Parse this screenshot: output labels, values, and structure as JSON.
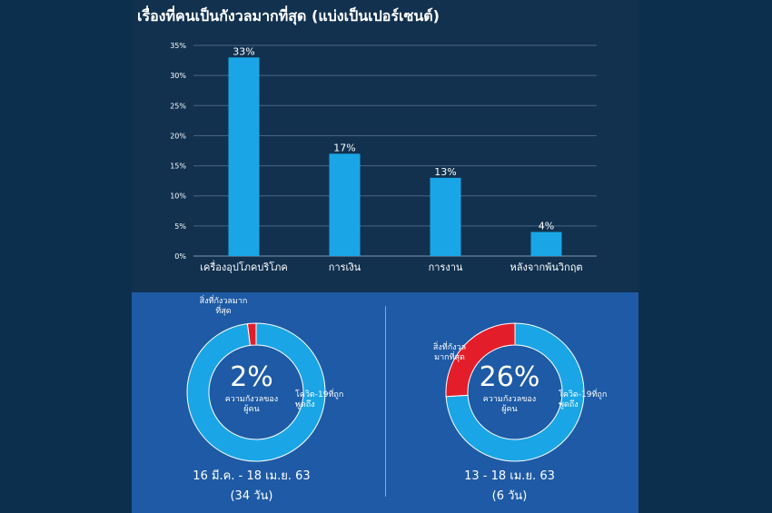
{
  "chart_data": [
    {
      "type": "bar",
      "title": "เรื่องที่คนเป็นกังวลมากที่สุด (แบ่งเป็นเปอร์เซนต์)",
      "categories": [
        "เครื่องอุปโภคบริโภค",
        "การเงิน",
        "การงาน",
        "หลังจากพ้นวิกฤต"
      ],
      "values": [
        33,
        17,
        13,
        4
      ],
      "data_labels": [
        "33%",
        "17%",
        "13%",
        "4%"
      ],
      "ylim": [
        0,
        35
      ],
      "yticks": [
        "0%",
        "5%",
        "10%",
        "15%",
        "20%",
        "25%",
        "30%",
        "35%"
      ],
      "grid": true,
      "bar_color": "#1aa6e6"
    },
    {
      "type": "pie",
      "donut": true,
      "center_value": "2%",
      "center_label": "ความกังวลของผู้คน",
      "slices": [
        {
          "label": "สิ่งที่กังวลมากที่สุด",
          "value": 2,
          "color": "#e31e2a"
        },
        {
          "label": "โควิด-19ที่ถูกพูดถึง",
          "value": 98,
          "color": "#1aa6e6"
        }
      ],
      "period": "16 มี.ค. - 18 เม.ย. 63",
      "duration": "(34 วัน)"
    },
    {
      "type": "pie",
      "donut": true,
      "center_value": "26%",
      "center_label": "ความกังวลของผู้คน",
      "slices": [
        {
          "label": "สิ่งที่กังวลมากที่สุด",
          "value": 26,
          "color": "#e31e2a"
        },
        {
          "label": "โควิด-19ที่ถูกพูดถึง",
          "value": 74,
          "color": "#1aa6e6"
        }
      ],
      "period": "13 - 18 เม.ย. 63",
      "duration": "(6 วัน)"
    }
  ]
}
